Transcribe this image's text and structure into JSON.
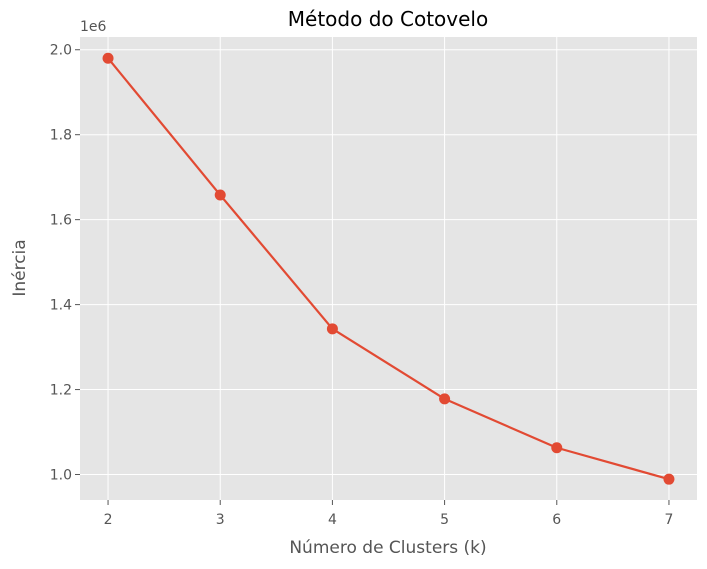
{
  "chart_data": {
    "type": "line",
    "title": "Método do Cotovelo",
    "xlabel": "Número de Clusters (k)",
    "ylabel": "Inércia",
    "y_offset_label": "1e6",
    "x": [
      2,
      3,
      4,
      5,
      6,
      7
    ],
    "series": [
      {
        "values": [
          1.98,
          1.658,
          1.343,
          1.178,
          1.063,
          0.989
        ],
        "color": "#e24a33",
        "marker": "circle"
      }
    ],
    "xticks": [
      2,
      3,
      4,
      5,
      6,
      7
    ],
    "yticks": [
      1.0,
      1.2,
      1.4,
      1.6,
      1.8,
      2.0
    ],
    "ytick_labels": [
      "1.0",
      "1.2",
      "1.4",
      "1.6",
      "1.8",
      "2.0"
    ],
    "xlim": [
      1.75,
      7.25
    ],
    "ylim": [
      0.94,
      2.03
    ],
    "grid": true,
    "style": "ggplot",
    "background_color": "#e5e5e5",
    "grid_color": "#ffffff"
  }
}
